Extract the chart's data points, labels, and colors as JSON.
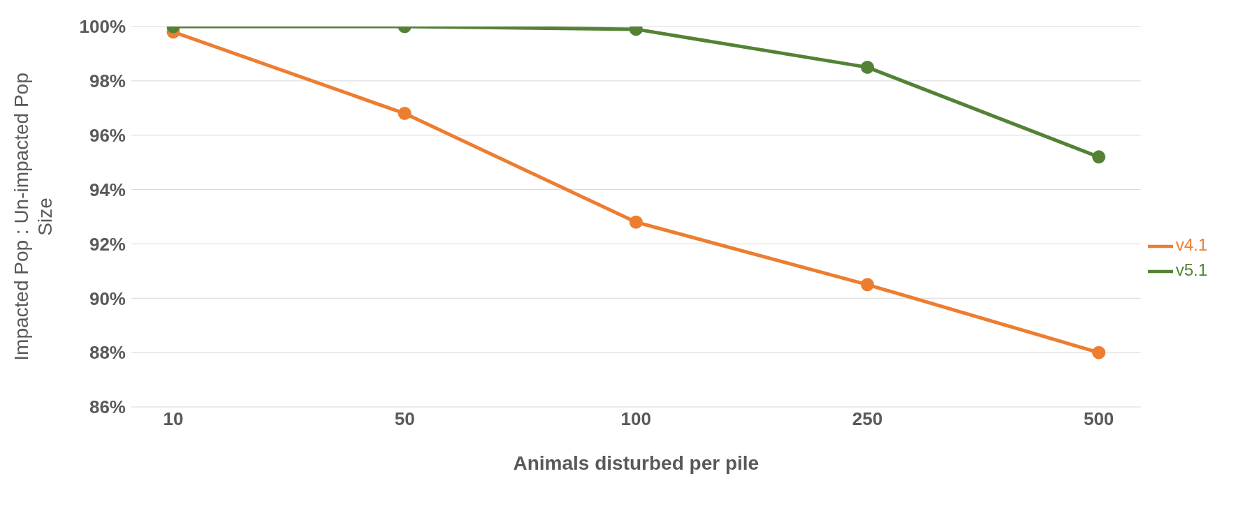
{
  "chart_data": {
    "type": "line",
    "xlabel": "Animals disturbed per pile",
    "ylabel": "Impacted Pop : Un-impacted Pop Size",
    "categories": [
      "10",
      "50",
      "100",
      "250",
      "500"
    ],
    "series": [
      {
        "name": "v4.1",
        "color": "#ed7d31",
        "values": [
          99.8,
          96.8,
          92.8,
          90.5,
          88.0
        ]
      },
      {
        "name": "v5.1",
        "color": "#548235",
        "values": [
          100,
          100,
          99.9,
          98.5,
          95.2
        ]
      }
    ],
    "ylim": [
      86,
      100
    ],
    "yticks": [
      {
        "value": 86,
        "label": "86%"
      },
      {
        "value": 88,
        "label": "88%"
      },
      {
        "value": 90,
        "label": "90%"
      },
      {
        "value": 92,
        "label": "92%"
      },
      {
        "value": 94,
        "label": "94%"
      },
      {
        "value": 96,
        "label": "96%"
      },
      {
        "value": 98,
        "label": "98%"
      },
      {
        "value": 100,
        "label": "100%"
      }
    ],
    "grid": "y",
    "legend": "right",
    "marker": "circle",
    "line_style": "solid"
  }
}
